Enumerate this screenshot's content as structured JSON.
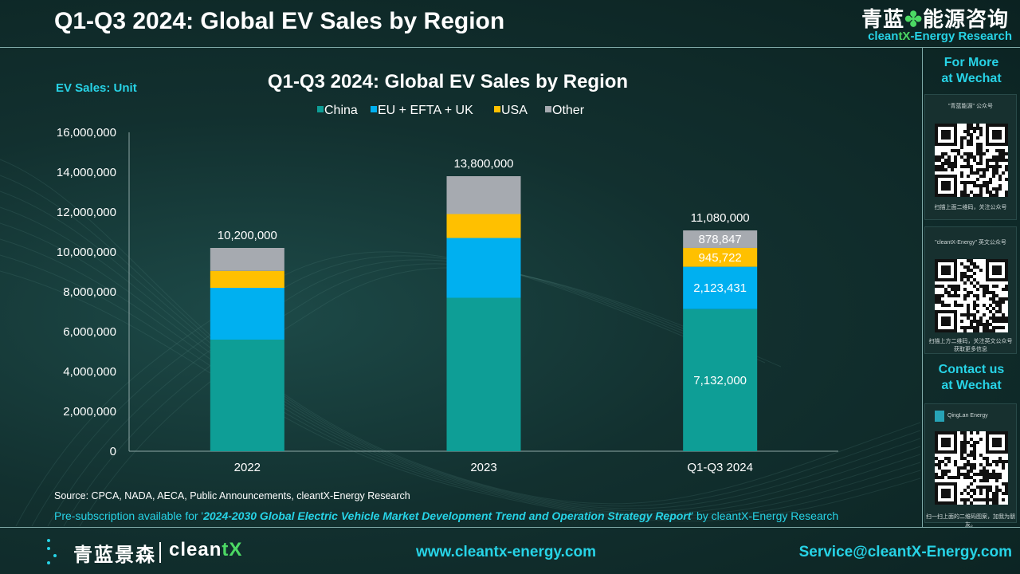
{
  "header": {
    "title": "Q1-Q3 2024: Global EV Sales by Region",
    "brand_cn_left": "青蓝",
    "brand_cn_right": "能源咨询",
    "brand_en_prefix": "clean",
    "brand_en_x": "tX",
    "brand_en_suffix": "-Energy Research"
  },
  "sidebar": {
    "more_line1": "For More",
    "more_line2": "at Wechat",
    "qr1_caption_top": "\"青蓝能源\" 公众号",
    "qr1_caption_bottom": "扫描上面二维码，关注公众号",
    "qr2_caption_top": "\"cleantX-Energy\" 英文公众号",
    "qr2_caption_bottom": "扫描上方二维码，关注英文公众号",
    "qr2_caption_bottom2": "获取更多信息",
    "contact_line1": "Contact us",
    "contact_line2": "at Wechat",
    "qr3_caption_top": "QingLan Energy",
    "qr3_caption_bottom": "扫一扫上面的二维码图案，加我为朋友。"
  },
  "colors": {
    "china": "#0e9e96",
    "eu": "#00b0f0",
    "usa": "#ffc000",
    "other": "#a6aab0",
    "accent": "#27d3e6"
  },
  "chart_data": {
    "type": "bar",
    "stacked": true,
    "title": "Q1-Q3 2024: Global EV Sales by Region",
    "ylabel": "EV Sales:  Unit",
    "categories": [
      "2022",
      "2023",
      "Q1-Q3 2024"
    ],
    "ylim": [
      0,
      16000000
    ],
    "yticks": [
      "0",
      "2,000,000",
      "4,000,000",
      "6,000,000",
      "8,000,000",
      "10,000,000",
      "12,000,000",
      "14,000,000",
      "16,000,000"
    ],
    "legend_position": "top",
    "series": [
      {
        "name": "China",
        "color": "#0e9e96",
        "values": [
          5600000,
          7700000,
          7132000
        ],
        "labels": [
          "",
          "",
          "7,132,000"
        ]
      },
      {
        "name": "EU + EFTA + UK",
        "color": "#00b0f0",
        "values": [
          2600000,
          3000000,
          2123431
        ],
        "labels": [
          "",
          "",
          "2,123,431"
        ]
      },
      {
        "name": "USA",
        "color": "#ffc000",
        "values": [
          850000,
          1200000,
          945722
        ],
        "labels": [
          "",
          "",
          "945,722"
        ]
      },
      {
        "name": "Other",
        "color": "#a6aab0",
        "values": [
          1150000,
          1900000,
          878847
        ],
        "labels": [
          "",
          "",
          "878,847"
        ]
      }
    ],
    "totals": [
      10200000,
      13800000,
      11080000
    ],
    "total_labels": [
      "10,200,000",
      "13,800,000",
      "11,080,000"
    ]
  },
  "notes": {
    "source": "Source: CPCA, NADA, AECA, Public Announcements, cleantX-Energy Research",
    "presub_prefix": "Pre-subscription available for '",
    "presub_report": "2024-2030 Global Electric Vehicle Market Development Trend and Operation Strategy Report",
    "presub_suffix": "' by cleantX-Energy Research"
  },
  "footer": {
    "logo_cn": "青蓝景森",
    "logo_en_prefix": "clean",
    "logo_en_x": "tX",
    "url": "www.cleantx-energy.com",
    "email": "Service@cleantX-Energy.com"
  }
}
